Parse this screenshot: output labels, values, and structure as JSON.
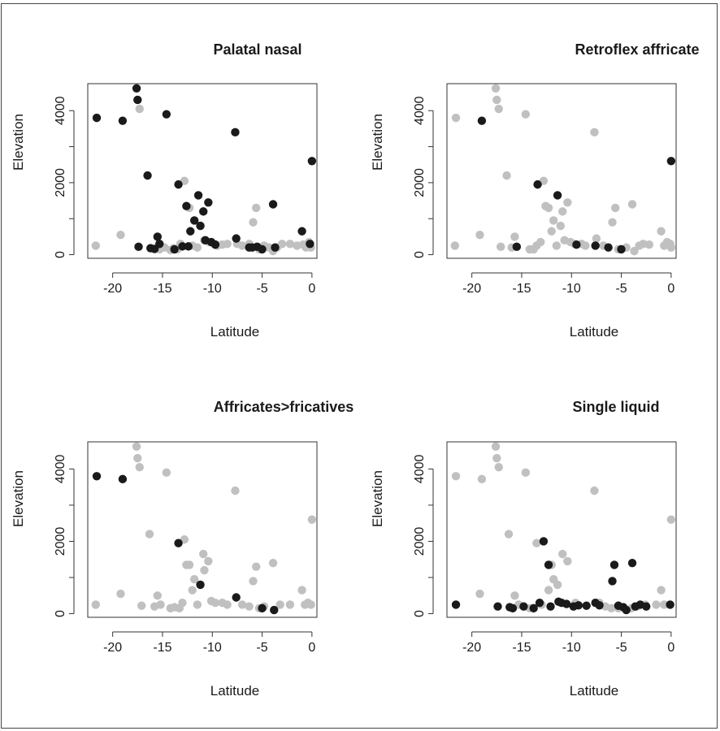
{
  "chart_data": [
    {
      "type": "scatter",
      "title": "Palatal nasal",
      "xlabel": "Latitude",
      "ylabel": "Elevation",
      "xlim": [
        -22.5,
        0.5
      ],
      "ylim": [
        -100,
        4750
      ],
      "xticks": [
        -20,
        -15,
        -10,
        -5,
        0
      ],
      "yticks": [
        0,
        2000,
        4000
      ],
      "ytick_labels_shown": [
        "0",
        "2000",
        "4000"
      ],
      "colors": {
        "present": "#1a1a1a",
        "absent": "#c0c0c0"
      },
      "series": [
        {
          "color": "#c0c0c0",
          "points": [
            [
              -21.7,
              250
            ],
            [
              -19.2,
              550
            ],
            [
              -17.3,
              4050
            ],
            [
              -15.3,
              150
            ],
            [
              -14.8,
              200
            ],
            [
              -14.2,
              130
            ],
            [
              -13.9,
              180
            ],
            [
              -13.5,
              150
            ],
            [
              -13.2,
              300
            ],
            [
              -12.8,
              2050
            ],
            [
              -12.3,
              1300
            ],
            [
              -12.0,
              250
            ],
            [
              -11.5,
              200
            ],
            [
              -11.2,
              800
            ],
            [
              -10.8,
              400
            ],
            [
              -10.3,
              350
            ],
            [
              -9.8,
              300
            ],
            [
              -9.5,
              250
            ],
            [
              -9.0,
              280
            ],
            [
              -8.5,
              300
            ],
            [
              -7.5,
              300
            ],
            [
              -7.0,
              250
            ],
            [
              -6.3,
              300
            ],
            [
              -5.9,
              900
            ],
            [
              -5.6,
              1300
            ],
            [
              -5.3,
              150
            ],
            [
              -4.8,
              250
            ],
            [
              -4.3,
              200
            ],
            [
              -3.9,
              100
            ],
            [
              -3.5,
              200
            ],
            [
              -3.0,
              300
            ],
            [
              -2.2,
              300
            ],
            [
              -1.5,
              250
            ],
            [
              -0.9,
              280
            ],
            [
              -0.6,
              200
            ],
            [
              -0.3,
              350
            ],
            [
              -0.1,
              200
            ]
          ]
        },
        {
          "color": "#1a1a1a",
          "points": [
            [
              -21.6,
              3800
            ],
            [
              -19.0,
              3720
            ],
            [
              -17.6,
              4620
            ],
            [
              -17.5,
              4300
            ],
            [
              -17.4,
              220
            ],
            [
              -16.5,
              2200
            ],
            [
              -16.2,
              180
            ],
            [
              -15.8,
              160
            ],
            [
              -15.5,
              500
            ],
            [
              -15.3,
              300
            ],
            [
              -14.6,
              3900
            ],
            [
              -13.8,
              150
            ],
            [
              -13.4,
              1950
            ],
            [
              -13.0,
              230
            ],
            [
              -12.6,
              1350
            ],
            [
              -12.4,
              230
            ],
            [
              -12.2,
              650
            ],
            [
              -11.8,
              950
            ],
            [
              -11.4,
              1650
            ],
            [
              -11.2,
              800
            ],
            [
              -10.9,
              1200
            ],
            [
              -10.7,
              400
            ],
            [
              -10.4,
              1450
            ],
            [
              -10.1,
              350
            ],
            [
              -9.7,
              280
            ],
            [
              -7.7,
              3400
            ],
            [
              -7.6,
              450
            ],
            [
              -6.3,
              200
            ],
            [
              -6.0,
              200
            ],
            [
              -5.5,
              220
            ],
            [
              -5.0,
              150
            ],
            [
              -3.9,
              1400
            ],
            [
              -3.7,
              200
            ],
            [
              -1.0,
              650
            ],
            [
              -0.2,
              300
            ],
            [
              0.0,
              2600
            ]
          ]
        }
      ]
    },
    {
      "type": "scatter",
      "title": "Retroflex affricate",
      "xlabel": "Latitude",
      "ylabel": "Elevation",
      "xlim": [
        -22.5,
        0.5
      ],
      "ylim": [
        -100,
        4750
      ],
      "xticks": [
        -20,
        -15,
        -10,
        -5,
        0
      ],
      "yticks": [
        0,
        2000,
        4000
      ],
      "ytick_labels_shown": [
        "0",
        "2000",
        "4000"
      ],
      "colors": {
        "present": "#1a1a1a",
        "absent": "#c0c0c0"
      },
      "series": [
        {
          "color": "#c0c0c0",
          "points": [
            [
              -21.6,
              3800
            ],
            [
              -21.7,
              250
            ],
            [
              -19.2,
              550
            ],
            [
              -17.6,
              4620
            ],
            [
              -17.5,
              4300
            ],
            [
              -17.3,
              4050
            ],
            [
              -17.1,
              220
            ],
            [
              -16.5,
              2200
            ],
            [
              -16.0,
              200
            ],
            [
              -15.7,
              500
            ],
            [
              -14.6,
              3900
            ],
            [
              -14.2,
              150
            ],
            [
              -13.8,
              150
            ],
            [
              -13.5,
              250
            ],
            [
              -13.1,
              350
            ],
            [
              -12.8,
              2050
            ],
            [
              -12.6,
              1350
            ],
            [
              -12.3,
              1300
            ],
            [
              -12.0,
              650
            ],
            [
              -11.8,
              950
            ],
            [
              -11.5,
              250
            ],
            [
              -11.1,
              800
            ],
            [
              -10.9,
              1200
            ],
            [
              -10.7,
              400
            ],
            [
              -10.4,
              1450
            ],
            [
              -10.1,
              350
            ],
            [
              -9.7,
              300
            ],
            [
              -9.0,
              300
            ],
            [
              -8.6,
              250
            ],
            [
              -7.7,
              3400
            ],
            [
              -7.5,
              450
            ],
            [
              -6.8,
              250
            ],
            [
              -5.9,
              900
            ],
            [
              -5.6,
              1300
            ],
            [
              -5.3,
              150
            ],
            [
              -4.5,
              200
            ],
            [
              -3.9,
              1400
            ],
            [
              -3.7,
              100
            ],
            [
              -3.2,
              250
            ],
            [
              -2.8,
              300
            ],
            [
              -2.2,
              280
            ],
            [
              -1.0,
              650
            ],
            [
              -0.7,
              250
            ],
            [
              -0.4,
              350
            ],
            [
              -0.1,
              300
            ],
            [
              0.0,
              200
            ]
          ]
        },
        {
          "color": "#1a1a1a",
          "points": [
            [
              -19.0,
              3720
            ],
            [
              -15.5,
              220
            ],
            [
              -13.4,
              1950
            ],
            [
              -11.4,
              1650
            ],
            [
              -9.5,
              280
            ],
            [
              -7.6,
              250
            ],
            [
              -6.3,
              200
            ],
            [
              -5.0,
              150
            ],
            [
              0.0,
              2600
            ]
          ]
        }
      ]
    },
    {
      "type": "scatter",
      "title": "Affricates>fricatives",
      "xlabel": "Latitude",
      "ylabel": "Elevation",
      "xlim": [
        -22.5,
        0.5
      ],
      "ylim": [
        -100,
        4750
      ],
      "xticks": [
        -20,
        -15,
        -10,
        -5,
        0
      ],
      "yticks": [
        0,
        2000,
        4000
      ],
      "ytick_labels_shown": [
        "0",
        "2000",
        "4000"
      ],
      "colors": {
        "present": "#1a1a1a",
        "absent": "#c0c0c0"
      },
      "series": [
        {
          "color": "#c0c0c0",
          "points": [
            [
              -21.7,
              250
            ],
            [
              -19.2,
              550
            ],
            [
              -17.6,
              4620
            ],
            [
              -17.5,
              4300
            ],
            [
              -17.3,
              4050
            ],
            [
              -17.1,
              220
            ],
            [
              -16.3,
              2200
            ],
            [
              -15.8,
              200
            ],
            [
              -15.5,
              500
            ],
            [
              -15.2,
              250
            ],
            [
              -14.6,
              3900
            ],
            [
              -14.2,
              150
            ],
            [
              -13.8,
              180
            ],
            [
              -13.3,
              150
            ],
            [
              -13.0,
              300
            ],
            [
              -12.8,
              2050
            ],
            [
              -12.6,
              1350
            ],
            [
              -12.3,
              1350
            ],
            [
              -12.0,
              650
            ],
            [
              -11.8,
              950
            ],
            [
              -11.5,
              250
            ],
            [
              -10.9,
              1650
            ],
            [
              -10.8,
              1200
            ],
            [
              -10.4,
              1450
            ],
            [
              -10.1,
              350
            ],
            [
              -9.7,
              300
            ],
            [
              -9.0,
              300
            ],
            [
              -8.5,
              250
            ],
            [
              -7.7,
              3400
            ],
            [
              -7.0,
              250
            ],
            [
              -6.3,
              200
            ],
            [
              -5.9,
              900
            ],
            [
              -5.6,
              1300
            ],
            [
              -5.3,
              150
            ],
            [
              -4.8,
              200
            ],
            [
              -3.9,
              1400
            ],
            [
              -3.2,
              250
            ],
            [
              -2.2,
              250
            ],
            [
              -1.0,
              650
            ],
            [
              -0.7,
              250
            ],
            [
              -0.4,
              300
            ],
            [
              -0.1,
              250
            ],
            [
              0.0,
              2600
            ]
          ]
        },
        {
          "color": "#1a1a1a",
          "points": [
            [
              -21.6,
              3800
            ],
            [
              -19.0,
              3720
            ],
            [
              -13.4,
              1950
            ],
            [
              -11.2,
              800
            ],
            [
              -7.6,
              450
            ],
            [
              -5.0,
              150
            ],
            [
              -3.8,
              100
            ]
          ]
        }
      ]
    },
    {
      "type": "scatter",
      "title": "Single liquid",
      "xlabel": "Latitude",
      "ylabel": "Elevation",
      "xlim": [
        -22.5,
        0.5
      ],
      "ylim": [
        -100,
        4750
      ],
      "xticks": [
        -20,
        -15,
        -10,
        -5,
        0
      ],
      "yticks": [
        0,
        2000,
        4000
      ],
      "ytick_labels_shown": [
        "0",
        "2000",
        "4000"
      ],
      "colors": {
        "present": "#1a1a1a",
        "absent": "#c0c0c0"
      },
      "series": [
        {
          "color": "#c0c0c0",
          "points": [
            [
              -21.6,
              3800
            ],
            [
              -19.2,
              550
            ],
            [
              -19.0,
              3720
            ],
            [
              -17.6,
              4620
            ],
            [
              -17.5,
              4300
            ],
            [
              -17.3,
              4050
            ],
            [
              -16.3,
              2200
            ],
            [
              -15.7,
              500
            ],
            [
              -15.3,
              250
            ],
            [
              -14.6,
              3900
            ],
            [
              -14.2,
              150
            ],
            [
              -13.5,
              1950
            ],
            [
              -13.0,
              250
            ],
            [
              -12.3,
              650
            ],
            [
              -12.0,
              1350
            ],
            [
              -11.8,
              950
            ],
            [
              -11.4,
              800
            ],
            [
              -10.9,
              1650
            ],
            [
              -10.4,
              1450
            ],
            [
              -9.6,
              300
            ],
            [
              -7.7,
              3400
            ],
            [
              -7.2,
              300
            ],
            [
              -6.6,
              200
            ],
            [
              -6.0,
              150
            ],
            [
              -5.3,
              150
            ],
            [
              -4.0,
              150
            ],
            [
              -3.4,
              200
            ],
            [
              -2.6,
              250
            ],
            [
              -1.5,
              250
            ],
            [
              -1.0,
              650
            ],
            [
              -0.7,
              250
            ],
            [
              0.0,
              2600
            ]
          ]
        },
        {
          "color": "#1a1a1a",
          "points": [
            [
              -21.6,
              250
            ],
            [
              -17.4,
              200
            ],
            [
              -16.2,
              180
            ],
            [
              -15.9,
              150
            ],
            [
              -14.8,
              200
            ],
            [
              -13.8,
              150
            ],
            [
              -13.2,
              300
            ],
            [
              -12.8,
              2000
            ],
            [
              -12.3,
              1350
            ],
            [
              -12.1,
              200
            ],
            [
              -11.3,
              330
            ],
            [
              -11.0,
              300
            ],
            [
              -10.5,
              270
            ],
            [
              -9.8,
              200
            ],
            [
              -9.3,
              230
            ],
            [
              -8.5,
              220
            ],
            [
              -7.6,
              300
            ],
            [
              -7.2,
              230
            ],
            [
              -5.9,
              900
            ],
            [
              -5.7,
              1350
            ],
            [
              -5.3,
              220
            ],
            [
              -4.8,
              180
            ],
            [
              -4.5,
              100
            ],
            [
              -3.9,
              1400
            ],
            [
              -3.6,
              200
            ],
            [
              -3.1,
              250
            ],
            [
              -2.5,
              200
            ],
            [
              -0.1,
              250
            ]
          ]
        }
      ]
    }
  ]
}
